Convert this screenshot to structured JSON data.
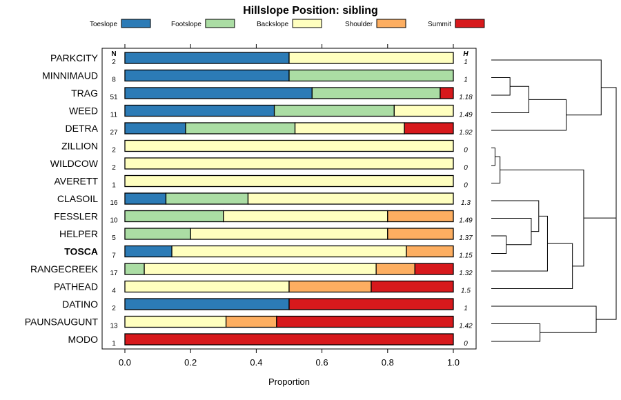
{
  "chart_data": {
    "type": "bar",
    "orientation": "horizontal",
    "stacked": true,
    "title": "Hillslope Position: sibling",
    "xlabel": "Proportion",
    "xlim": [
      -0.07,
      1.07
    ],
    "xticks": [
      0.0,
      0.2,
      0.4,
      0.6,
      0.8,
      1.0
    ],
    "xtick_labels": [
      "0.0",
      "0.2",
      "0.4",
      "0.6",
      "0.8",
      "1.0"
    ],
    "n_header": "N",
    "h_header": "H",
    "legend": [
      {
        "name": "Toeslope",
        "color": "#2c7bb6"
      },
      {
        "name": "Footslope",
        "color": "#abdda4"
      },
      {
        "name": "Backslope",
        "color": "#ffffbf"
      },
      {
        "name": "Shoulder",
        "color": "#fdae61"
      },
      {
        "name": "Summit",
        "color": "#d7191c"
      }
    ],
    "highlight": "TOSCA",
    "rows": [
      {
        "name": "PARKCITY",
        "n": "2",
        "h": "1",
        "values": [
          0.5,
          0,
          0.5,
          0,
          0
        ]
      },
      {
        "name": "MINNIMAUD",
        "n": "8",
        "h": "1",
        "values": [
          0.5,
          0.5,
          0,
          0,
          0
        ]
      },
      {
        "name": "TRAG",
        "n": "51",
        "h": "1.18",
        "values": [
          0.57,
          0.39,
          0,
          0,
          0.04
        ]
      },
      {
        "name": "WEED",
        "n": "11",
        "h": "1.49",
        "values": [
          0.455,
          0.365,
          0.18,
          0,
          0
        ]
      },
      {
        "name": "DETRA",
        "n": "27",
        "h": "1.92",
        "values": [
          0.185,
          0.333,
          0.333,
          0,
          0.149
        ]
      },
      {
        "name": "ZILLION",
        "n": "2",
        "h": "0",
        "values": [
          0,
          0,
          1,
          0,
          0
        ]
      },
      {
        "name": "WILDCOW",
        "n": "2",
        "h": "0",
        "values": [
          0,
          0,
          1,
          0,
          0
        ]
      },
      {
        "name": "AVERETT",
        "n": "1",
        "h": "0",
        "values": [
          0,
          0,
          1,
          0,
          0
        ]
      },
      {
        "name": "CLASOIL",
        "n": "16",
        "h": "1.3",
        "values": [
          0.125,
          0.25,
          0.625,
          0,
          0
        ]
      },
      {
        "name": "FESSLER",
        "n": "10",
        "h": "1.49",
        "values": [
          0,
          0.3,
          0.5,
          0.2,
          0
        ]
      },
      {
        "name": "HELPER",
        "n": "5",
        "h": "1.37",
        "values": [
          0,
          0.2,
          0.6,
          0.2,
          0
        ]
      },
      {
        "name": "TOSCA",
        "n": "7",
        "h": "1.15",
        "values": [
          0.143,
          0,
          0.714,
          0.143,
          0
        ]
      },
      {
        "name": "RANGECREEK",
        "n": "17",
        "h": "1.32",
        "values": [
          0,
          0.059,
          0.706,
          0.118,
          0.117
        ]
      },
      {
        "name": "PATHEAD",
        "n": "4",
        "h": "1.5",
        "values": [
          0,
          0,
          0.5,
          0.25,
          0.25
        ]
      },
      {
        "name": "DATINO",
        "n": "2",
        "h": "1",
        "values": [
          0.5,
          0,
          0,
          0,
          0.5
        ]
      },
      {
        "name": "PAUNSAUGUNT",
        "n": "13",
        "h": "1.42",
        "values": [
          0,
          0,
          0.308,
          0.154,
          0.538
        ]
      },
      {
        "name": "MODO",
        "n": "1",
        "h": "0",
        "values": [
          0,
          0,
          0,
          0,
          1
        ]
      }
    ],
    "dendrogram": {
      "merges": [
        {
          "a": "r:5",
          "b": "r:6",
          "h": 0.03
        },
        {
          "a": "m:0",
          "b": "r:7",
          "h": 0.07
        },
        {
          "a": "r:10",
          "b": "r:11",
          "h": 0.12
        },
        {
          "a": "r:1",
          "b": "r:2",
          "h": 0.15
        },
        {
          "a": "m:3",
          "b": "r:3",
          "h": 0.3
        },
        {
          "a": "m:2",
          "b": "r:9",
          "h": 0.32
        },
        {
          "a": "m:5",
          "b": "r:8",
          "h": 0.38
        },
        {
          "a": "r:15",
          "b": "r:16",
          "h": 0.39
        },
        {
          "a": "m:4",
          "b": "r:4",
          "h": 0.6
        },
        {
          "a": "m:6",
          "b": "r:12",
          "h": 0.45
        },
        {
          "a": "m:9",
          "b": "r:13",
          "h": 0.65
        },
        {
          "a": "m:10",
          "b": "m:1",
          "h": 0.74
        },
        {
          "a": "m:7",
          "b": "r:14",
          "h": 0.84
        },
        {
          "a": "m:8",
          "b": "r:0",
          "h": 0.88
        },
        {
          "a": "m:11",
          "b": "m:12",
          "h": 1.0
        },
        {
          "a": "m:13",
          "b": "m:14",
          "h": 1.0
        }
      ],
      "merge_note": "final merge joins top group with rest",
      "root_height": 1.0
    }
  }
}
